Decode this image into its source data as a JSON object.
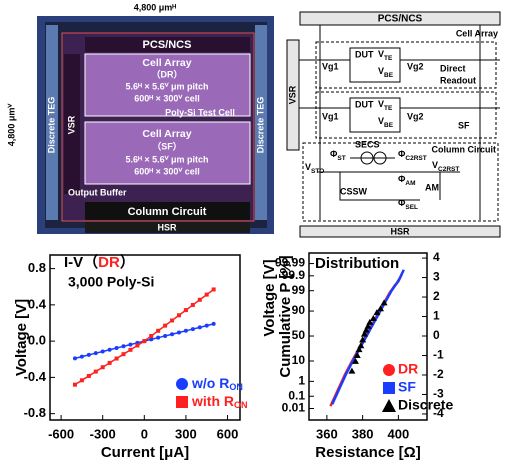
{
  "die_photo": {
    "width": "4,800 μmᴴ",
    "height": "4,800 μmⱽ",
    "pcs": "PCS/NCS",
    "array_dr": [
      "Cell Array",
      "（DR）",
      "5.6ᴴ × 5.6ⱽ μm pitch",
      "600ᴴ × 300ⱽ cell"
    ],
    "test_cell": "Poly-Si Test Cell",
    "array_sf": [
      "Cell Array",
      "（SF）",
      "5.6ᴴ × 5.6ⱽ μm pitch",
      "600ᴴ × 300ⱽ cell"
    ],
    "output_buffer": "Output Buffer",
    "column": "Column Circuit",
    "hsr": "HSR",
    "vsr": "VSR",
    "teg": [
      "Discrete TEG",
      "Discrete TEG"
    ]
  },
  "circuit": {
    "pcs": "PCS/NCS",
    "cell_array": "Cell Array",
    "vsr": "VSR",
    "rows": [
      {
        "vg1": "Vg1",
        "dut": "DUT",
        "vte": [
          "V",
          "TE"
        ],
        "vbe": [
          "V",
          "BE"
        ],
        "vg2": "Vg2",
        "mode": [
          "Direct",
          "Readout"
        ]
      },
      {
        "vg1": "Vg1",
        "dut": "DUT",
        "vte": [
          "V",
          "TE"
        ],
        "vbe": [
          "V",
          "BE"
        ],
        "vg2": "Vg2",
        "mode": [
          "SF"
        ]
      }
    ],
    "secs": "SECS",
    "column": "Column Circuit",
    "vsto": [
      "V",
      "STO"
    ],
    "phi_st": [
      "Φ",
      "ST"
    ],
    "phi_c2rst": [
      "Φ",
      "C2RST"
    ],
    "v_c2rst": [
      "V",
      "C2RST"
    ],
    "phi_am": [
      "Φ",
      "AM"
    ],
    "am": "AM",
    "phi_sel": [
      "Φ",
      "SEL"
    ],
    "cssw": "CSSW",
    "hsr": "HSR"
  },
  "chart_data": [
    {
      "type": "line",
      "title_parts": [
        {
          "text": "I-V（"
        },
        {
          "text": "DR",
          "color": "#ff2020"
        },
        {
          "text": "）"
        }
      ],
      "subtitle": "3,000 Poly-Si",
      "xlabel": "Current [μA]",
      "ylabel": "Voltage [V]",
      "x": [
        -500,
        -450,
        -400,
        -350,
        -300,
        -250,
        -200,
        -150,
        -100,
        -50,
        0,
        50,
        100,
        150,
        200,
        250,
        300,
        350,
        400,
        450,
        500
      ],
      "series": [
        {
          "name": "w/o R",
          "name_sub": "ON",
          "color": "#1a3cff",
          "marker": "circle",
          "values": [
            -0.19,
            -0.171,
            -0.152,
            -0.133,
            -0.114,
            -0.095,
            -0.076,
            -0.057,
            -0.038,
            -0.019,
            0,
            0.019,
            0.038,
            0.057,
            0.076,
            0.095,
            0.114,
            0.133,
            0.152,
            0.171,
            0.19
          ]
        },
        {
          "name": "with R",
          "name_sub": "ON",
          "color": "#ff2020",
          "marker": "square",
          "values": [
            -0.48,
            -0.432,
            -0.384,
            -0.336,
            -0.288,
            -0.24,
            -0.192,
            -0.144,
            -0.096,
            -0.048,
            0,
            0.057,
            0.114,
            0.171,
            0.228,
            0.285,
            0.342,
            0.399,
            0.456,
            0.513,
            0.57
          ]
        }
      ],
      "xlim": [
        -680,
        690
      ],
      "xticks": [
        -600,
        -300,
        0,
        300,
        600
      ],
      "ylim": [
        -0.87,
        0.95
      ],
      "yticks": [
        -0.8,
        -0.4,
        {
          "value": 0,
          "label": "0.0"
        },
        0.4,
        0.8
      ],
      "legend": "lower right"
    },
    {
      "type": "scatter",
      "title": "Distribution",
      "xlabel": "Resistance [Ω]",
      "ylabel": "Cumulative P [%]",
      "ylabel_overlay": "Voltage [V]",
      "yscale": "probit",
      "xlim": [
        350,
        416
      ],
      "xticks": [
        360,
        380,
        400
      ],
      "ylim": [
        0.00082,
        99.99898
      ],
      "yticks": [
        99.99,
        99.9,
        99,
        90,
        50,
        10,
        1,
        0.1,
        0.01
      ],
      "y2lim": [
        -4.31,
        4.26
      ],
      "y2ticks": [
        4,
        3,
        2,
        1,
        0,
        -1,
        -2,
        -3,
        -4
      ],
      "series": [
        {
          "name": "DR",
          "color": "#ff2020",
          "marker": "circle",
          "style": "line",
          "axis": "y2",
          "x": [
            362,
            366,
            370,
            374,
            377,
            380,
            383,
            386,
            389,
            392,
            395,
            398,
            400,
            402
          ],
          "values": [
            -3.6,
            -2.8,
            -2.0,
            -1.3,
            -0.8,
            -0.3,
            0.2,
            0.7,
            1.2,
            1.7,
            2.2,
            2.6,
            2.8,
            3.2
          ]
        },
        {
          "name": "SF",
          "color": "#1a3cff",
          "marker": "square",
          "style": "line",
          "axis": "y2",
          "x": [
            363,
            367,
            371,
            375,
            378,
            381,
            384,
            387,
            390,
            393,
            396,
            399,
            401,
            403
          ],
          "values": [
            -3.5,
            -2.7,
            -1.9,
            -1.2,
            -0.7,
            -0.2,
            0.3,
            0.8,
            1.3,
            1.8,
            2.3,
            2.7,
            3.0,
            3.4
          ]
        },
        {
          "name": "Discrete",
          "color": "#000000",
          "marker": "triangle",
          "style": "points",
          "axis": "y2",
          "x": [
            374,
            376,
            377,
            378,
            379,
            380,
            381,
            382,
            383,
            384,
            386,
            388,
            390,
            392
          ],
          "values": [
            -1.8,
            -1.3,
            -1.0,
            -0.7,
            -0.5,
            -0.2,
            0.1,
            0.3,
            0.5,
            0.7,
            0.9,
            1.2,
            1.4,
            1.7
          ]
        }
      ],
      "legend": "lower right"
    }
  ]
}
